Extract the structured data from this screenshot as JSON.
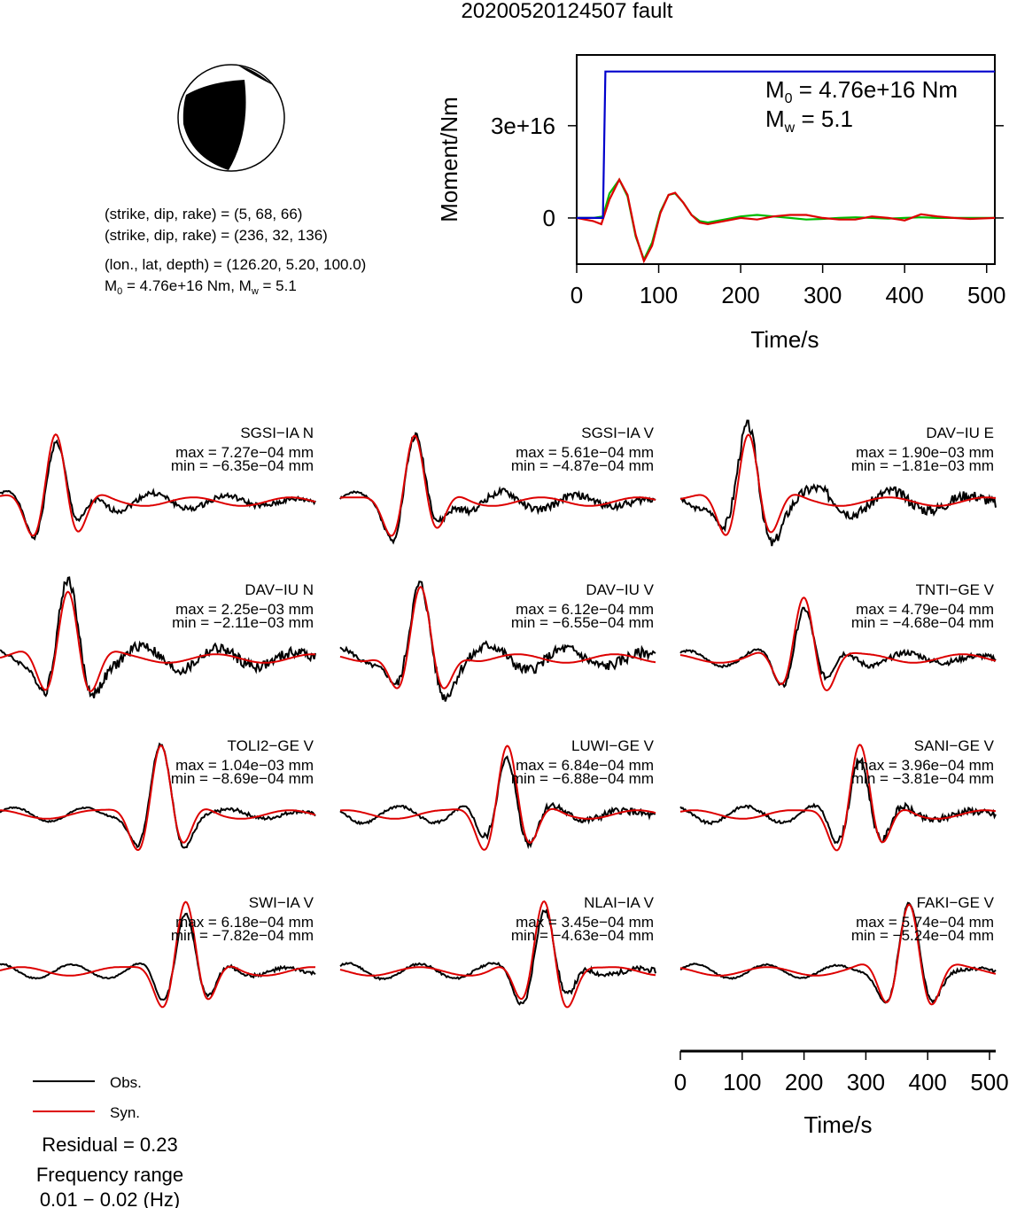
{
  "title": "20200520124507 fault",
  "mechanism": {
    "plane1": "(strike, dip, rake) = (5, 68, 66)",
    "plane2": "(strike, dip, rake) = (236, 32, 136)",
    "location": "(lon., lat, depth) = (126.20, 5.20, 100.0)",
    "moment_prefix": "M",
    "moment_sub": "0",
    "moment_value": " = 4.76e+16 Nm, M",
    "mw_sub": "w",
    "mw_value": " = 5.1",
    "colors": {
      "fill": "#000000",
      "background": "#ffffff"
    }
  },
  "legend": {
    "obs": "Obs.",
    "syn": "Syn.",
    "obs_color": "#000000",
    "syn_color": "#dd0000"
  },
  "residual": "Residual = 0.23",
  "frequency_label": "Frequency range",
  "frequency_value": "0.01 − 0.02 (Hz)",
  "chart_data": [
    {
      "type": "line",
      "name": "moment-function",
      "xlabel": "Time/s",
      "ylabel": "Moment/Nm",
      "xlim": [
        0,
        510
      ],
      "ylim": [
        -1.5e+16,
        5.3e+16
      ],
      "xticks": [
        "0",
        "100",
        "200",
        "300",
        "400",
        "500"
      ],
      "yticks": [
        {
          "value": 0,
          "label": "0"
        },
        {
          "value": 3e+16,
          "label": "3e+16"
        }
      ],
      "annotation": {
        "m0_prefix": "M",
        "m0_sub": "0",
        "m0_value": " = 4.76e+16 Nm",
        "mw_prefix": "M",
        "mw_sub": "w",
        "mw_value": " = 5.1"
      },
      "series": [
        {
          "color": "#0000cc",
          "x": [
            0,
            32,
            35,
            510
          ],
          "y": [
            0,
            0,
            4.76e+16,
            4.76e+16
          ]
        },
        {
          "color": "#00bb00",
          "x": [
            0,
            20,
            32,
            40,
            52,
            62,
            72,
            82,
            92,
            102,
            112,
            120,
            130,
            140,
            150,
            160,
            180,
            200,
            220,
            240,
            260,
            280,
            300,
            320,
            340,
            360,
            380,
            400,
            420,
            440,
            460,
            480,
            510
          ],
          "y": [
            0,
            0,
            500000000000000.0,
            8000000000000000.0,
            1.25e+16,
            7000000000000000.0,
            -6000000000000000.0,
            -1.35e+16,
            -8000000000000000.0,
            2000000000000000.0,
            7500000000000000.0,
            8000000000000000.0,
            5000000000000000.0,
            1000000000000000.0,
            -1000000000000000.0,
            -1500000000000000.0,
            -500000000000000.0,
            500000000000000.0,
            1000000000000000.0,
            500000000000000.0,
            0,
            -500000000000000.0,
            -300000000000000.0,
            0,
            200000000000000.0,
            0,
            -200000000000000.0,
            0,
            200000000000000.0,
            0,
            0,
            0,
            0
          ]
        },
        {
          "color": "#dd0000",
          "x": [
            0,
            20,
            30,
            40,
            52,
            62,
            72,
            82,
            92,
            102,
            112,
            120,
            130,
            140,
            150,
            160,
            180,
            200,
            220,
            240,
            260,
            280,
            300,
            320,
            340,
            360,
            380,
            400,
            420,
            440,
            460,
            480,
            510
          ],
          "y": [
            0,
            -1000000000000000.0,
            -2000000000000000.0,
            6000000000000000.0,
            1.25e+16,
            7500000000000000.0,
            -5500000000000000.0,
            -1.4e+16,
            -9000000000000000.0,
            1500000000000000.0,
            7500000000000000.0,
            8200000000000000.0,
            5000000000000000.0,
            1000000000000000.0,
            -1500000000000000.0,
            -2000000000000000.0,
            -1000000000000000.0,
            0,
            -500000000000000.0,
            500000000000000.0,
            1000000000000000.0,
            1000000000000000.0,
            0,
            -500000000000000.0,
            -500000000000000.0,
            500000000000000.0,
            0,
            -800000000000000.0,
            1200000000000000.0,
            500000000000000.0,
            0,
            -300000000000000.0,
            0
          ]
        }
      ]
    },
    {
      "type": "line",
      "name": "waveforms",
      "xlabel": "Time/s",
      "xlim": [
        0,
        510
      ],
      "xticks": [
        "0",
        "100",
        "200",
        "300",
        "400",
        "500"
      ],
      "traces": [
        {
          "label": "SGSI−IA N",
          "max": "max = 7.27e−04 mm",
          "min": "min = −6.35e−04 mm",
          "seed": 1,
          "peak": 90,
          "amp": 1.0,
          "obs_jitter": 0.15
        },
        {
          "label": "SGSI−IA V",
          "max": "max = 5.61e−04 mm",
          "min": "min = −4.87e−04 mm",
          "seed": 2,
          "peak": 120,
          "amp": 0.95,
          "obs_jitter": 0.2
        },
        {
          "label": "DAV−IU E",
          "max": "max = 1.90e−03 mm",
          "min": "min = −1.81e−03 mm",
          "seed": 3,
          "peak": 110,
          "amp": 1.0,
          "obs_jitter": 0.3
        },
        {
          "label": "DAV−IU N",
          "max": "max = 2.25e−03 mm",
          "min": "min = −2.11e−03 mm",
          "seed": 4,
          "peak": 110,
          "amp": 1.0,
          "obs_jitter": 0.3
        },
        {
          "label": "DAV−IU V",
          "max": "max = 6.12e−04 mm",
          "min": "min = −6.55e−04 mm",
          "seed": 5,
          "peak": 130,
          "amp": 0.95,
          "obs_jitter": 0.3
        },
        {
          "label": "TNTI−GE V",
          "max": "max = 4.79e−04 mm",
          "min": "min = −4.68e−04 mm",
          "seed": 6,
          "peak": 200,
          "amp": 0.9,
          "obs_jitter": 0.15
        },
        {
          "label": "TOLI2−GE V",
          "max": "max = 1.04e−03 mm",
          "min": "min = −8.69e−04 mm",
          "seed": 7,
          "peak": 260,
          "amp": 1.0,
          "obs_jitter": 0.1
        },
        {
          "label": "LUWI−GE V",
          "max": "max = 6.84e−04 mm",
          "min": "min = −6.88e−04 mm",
          "seed": 8,
          "peak": 270,
          "amp": 1.0,
          "obs_jitter": 0.2
        },
        {
          "label": "SANI−GE V",
          "max": "max = 3.96e−04 mm",
          "min": "min = −3.81e−04 mm",
          "seed": 9,
          "peak": 290,
          "amp": 1.0,
          "obs_jitter": 0.2
        },
        {
          "label": "SWI−IA V",
          "max": "max = 6.18e−04 mm",
          "min": "min = −7.82e−04 mm",
          "seed": 10,
          "peak": 300,
          "amp": 1.0,
          "obs_jitter": 0.1
        },
        {
          "label": "NLAI−IA V",
          "max": "max = 3.45e−04 mm",
          "min": "min = −4.63e−04 mm",
          "seed": 11,
          "peak": 330,
          "amp": 1.0,
          "obs_jitter": 0.15
        },
        {
          "label": "FAKI−GE V",
          "max": "max = 5.74e−04 mm",
          "min": "min = −5.24e−04 mm",
          "seed": 12,
          "peak": 370,
          "amp": 1.0,
          "obs_jitter": 0.1
        }
      ]
    }
  ]
}
